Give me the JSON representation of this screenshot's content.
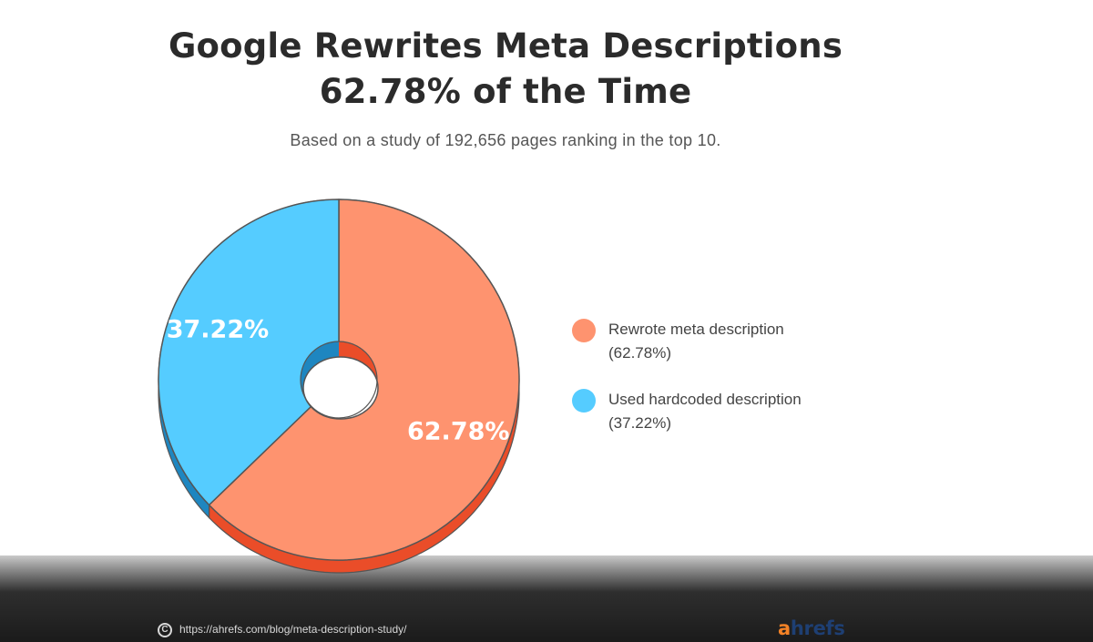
{
  "header": {
    "title_line1": "Google Rewrites Meta Descriptions",
    "title_line2": "62.78% of the Time",
    "subtitle": "Based on a study of 192,656 pages ranking in the top 10."
  },
  "chart_data": {
    "type": "pie",
    "style": "3d-donut",
    "title": "Google Rewrites Meta Descriptions 62.78% of the Time",
    "subtitle": "Based on a study of 192,656 pages ranking in the top 10.",
    "legend_position": "right",
    "slices": [
      {
        "name": "Rewrote meta description",
        "value": 62.78,
        "label": "62.78%",
        "legend_value": "(62.78%)",
        "color": "#fe936f",
        "side_color": "#ea4d29"
      },
      {
        "name": "Used hardcoded description",
        "value": 37.22,
        "label": "37.22%",
        "legend_value": "(37.22%)",
        "color": "#55ccff",
        "side_color": "#1e86c0"
      }
    ]
  },
  "footer": {
    "source_url": "https://ahrefs.com/blog/meta-description-study/",
    "copyright_symbol": "C",
    "logo_a": "a",
    "logo_rest": "hrefs"
  },
  "colors": {
    "title": "#2b2b2b",
    "outline": "#555555",
    "logo_orange": "#f48226",
    "logo_navy": "#1e3f73"
  }
}
